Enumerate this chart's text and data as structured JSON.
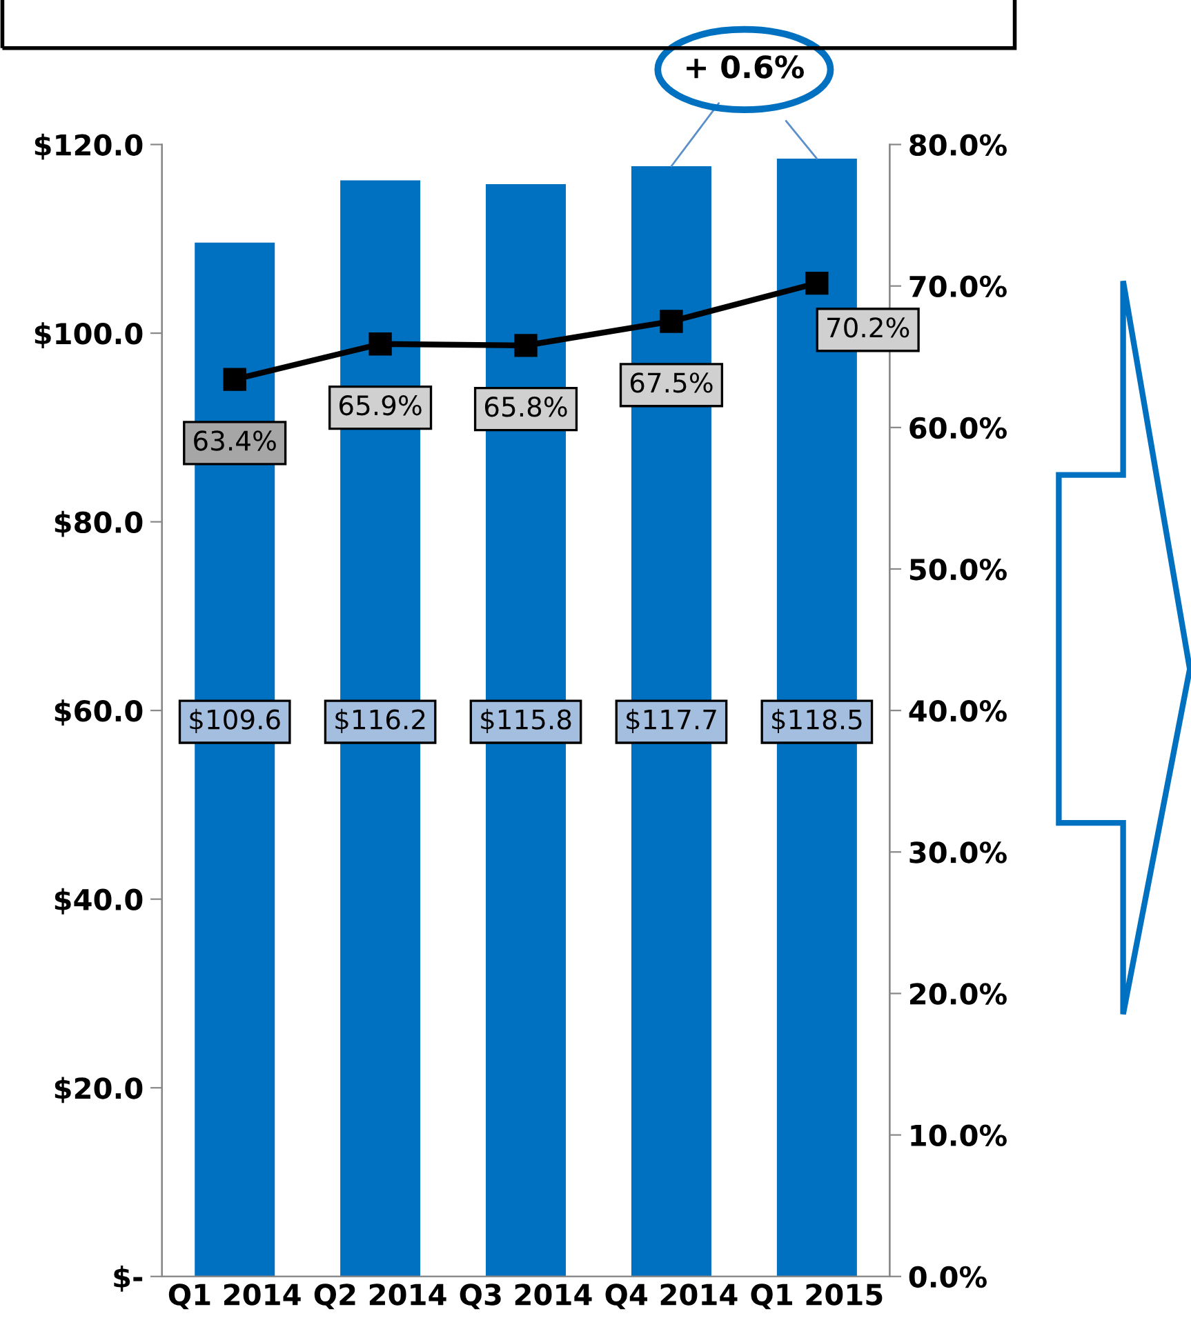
{
  "chart_data": {
    "type": "bar",
    "categories": [
      "Q1 2014",
      "Q2 2014",
      "Q3 2014",
      "Q4 2014",
      "Q1 2015"
    ],
    "series": [
      {
        "color": "#0070c0",
        "values": [
          109.6,
          116.2,
          115.8,
          117.7,
          118.5
        ],
        "value_labels": [
          "$109.6",
          "$116.2",
          "$115.8",
          "$117.7",
          "$118.5"
        ]
      },
      {
        "type": "line",
        "axis": "y2",
        "color": "#000000",
        "marker": "square",
        "line_style": "solid",
        "values": [
          63.4,
          65.9,
          65.8,
          67.5,
          70.2
        ],
        "value_labels": [
          "63.4%",
          "65.9%",
          "65.8%",
          "67.5%",
          "70.2%"
        ]
      }
    ],
    "ylim": [
      0,
      120
    ],
    "yticks": [
      {
        "value": 0,
        "label": "$-"
      },
      {
        "value": 20,
        "label": "$20.0"
      },
      {
        "value": 40,
        "label": "$40.0"
      },
      {
        "value": 60,
        "label": "$60.0"
      },
      {
        "value": 80,
        "label": "$80.0"
      },
      {
        "value": 100,
        "label": "$100.0"
      },
      {
        "value": 120,
        "label": "$120.0"
      }
    ],
    "y2lim": [
      0,
      80
    ],
    "y2ticks": [
      {
        "value": 0,
        "label": "0.0%"
      },
      {
        "value": 10,
        "label": "10.0%"
      },
      {
        "value": 20,
        "label": "20.0%"
      },
      {
        "value": 30,
        "label": "30.0%"
      },
      {
        "value": 40,
        "label": "40.0%"
      },
      {
        "value": 50,
        "label": "50.0%"
      },
      {
        "value": 60,
        "label": "60.0%"
      },
      {
        "value": 70,
        "label": "70.0%"
      },
      {
        "value": 80,
        "label": "80.0%"
      }
    ],
    "annotations": [
      {
        "text": "+ 0.6%",
        "x": "Q1 2015",
        "y": 118.5
      }
    ],
    "grid": false,
    "legend": false
  }
}
